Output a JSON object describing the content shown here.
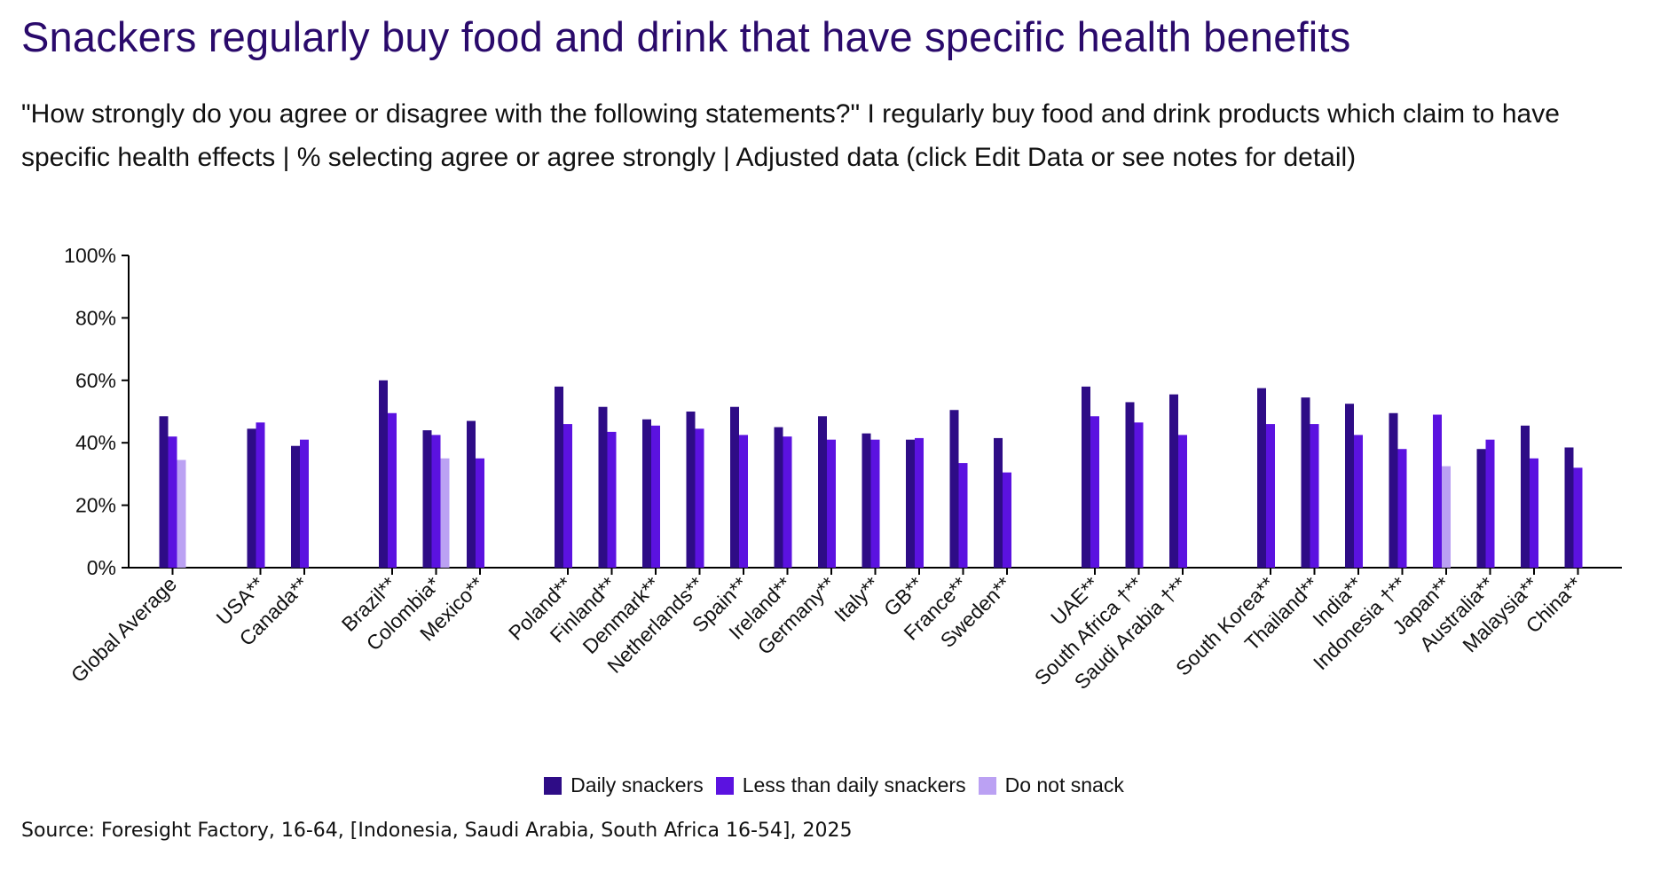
{
  "title": "Snackers regularly buy food and drink that have specific health benefits",
  "subtitle": "\"How strongly do you agree or disagree with the following statements?\" I regularly buy food and drink products which claim to have specific health effects | % selecting agree or agree strongly | Adjusted data (click Edit Data or see notes for detail)",
  "source": "Source: Foresight Factory, 16-64, [Indonesia, Saudi Arabia, South Africa 16-54], 2025",
  "legend": {
    "daily": "Daily snackers",
    "less": "Less than daily snackers",
    "none": "Do not snack"
  },
  "colors": {
    "daily": "#2e0c86",
    "less": "#5b12e0",
    "none": "#bba1f3",
    "title": "#2a0a6b"
  },
  "chart_data": {
    "type": "bar",
    "ylim": [
      0,
      100
    ],
    "yticks": [
      "0%",
      "20%",
      "40%",
      "60%",
      "80%",
      "100%"
    ],
    "legend_position": "bottom-center",
    "grid": false,
    "groups": [
      [
        "Global Average"
      ],
      [
        "USA**",
        "Canada**"
      ],
      [
        "Brazil**",
        "Colombia*",
        "Mexico**"
      ],
      [
        "Poland**",
        "Finland**",
        "Denmark**",
        "Netherlands**",
        "Spain**",
        "Ireland**",
        "Germany**",
        "Italy**",
        "GB**",
        "France**",
        "Sweden**"
      ],
      [
        "UAE**",
        "South Africa †**",
        "Saudi Arabia †**"
      ],
      [
        "South Korea**",
        "Thailand**",
        "India**",
        "Indonesia †**",
        "Japan**",
        "Australia**",
        "Malaysia**",
        "China**"
      ]
    ],
    "categories": [
      "Global Average",
      "USA**",
      "Canada**",
      "Brazil**",
      "Colombia*",
      "Mexico**",
      "Poland**",
      "Finland**",
      "Denmark**",
      "Netherlands**",
      "Spain**",
      "Ireland**",
      "Germany**",
      "Italy**",
      "GB**",
      "France**",
      "Sweden**",
      "UAE**",
      "South Africa †**",
      "Saudi Arabia †**",
      "South Korea**",
      "Thailand**",
      "India**",
      "Indonesia †**",
      "Japan**",
      "Australia**",
      "Malaysia**",
      "China**"
    ],
    "series": [
      {
        "name": "Daily snackers",
        "values": [
          48.5,
          44.5,
          39,
          60,
          44,
          47,
          58,
          51.5,
          47.5,
          50,
          51.5,
          45,
          48.5,
          43,
          41,
          50.5,
          41.5,
          58,
          53,
          55.5,
          57.5,
          54.5,
          52.5,
          49.5,
          null,
          38,
          45.5,
          38.5
        ]
      },
      {
        "name": "Less than daily snackers",
        "values": [
          42,
          46.5,
          41,
          49.5,
          42.5,
          35,
          46,
          43.5,
          45.5,
          44.5,
          42.5,
          42,
          41,
          41,
          41.5,
          33.5,
          30.5,
          48.5,
          46.5,
          42.5,
          46,
          46,
          42.5,
          38,
          49,
          41,
          35,
          32
        ]
      },
      {
        "name": "Do not snack",
        "values": [
          34.5,
          null,
          null,
          null,
          35,
          null,
          null,
          null,
          null,
          null,
          null,
          null,
          null,
          null,
          null,
          null,
          null,
          null,
          null,
          null,
          null,
          null,
          null,
          null,
          32.5,
          null,
          null,
          null
        ]
      }
    ]
  }
}
